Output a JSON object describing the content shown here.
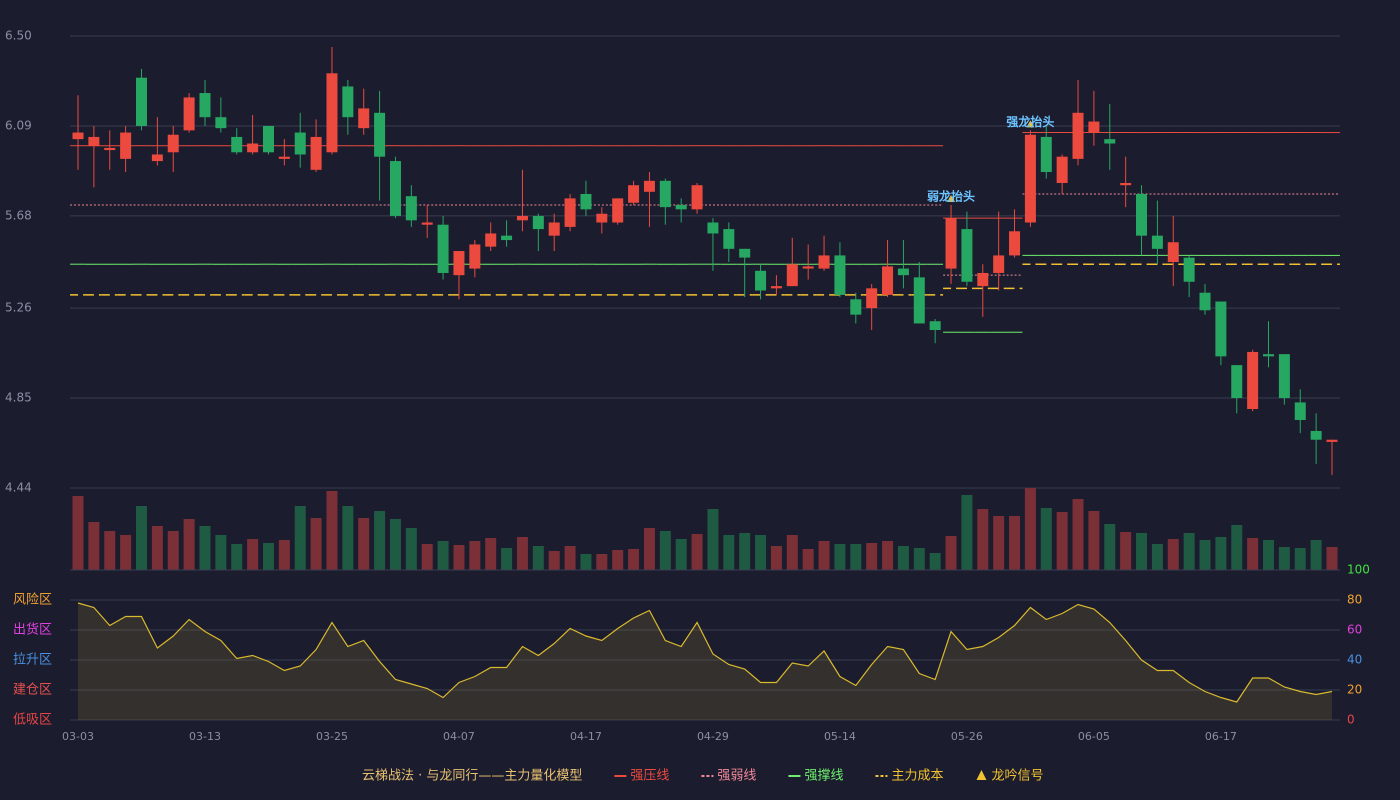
{
  "chart_data": {
    "type": "candlestick",
    "categories": [
      "03-03",
      null,
      null,
      null,
      null,
      null,
      null,
      null,
      "03-13",
      null,
      null,
      null,
      null,
      null,
      null,
      null,
      "03-25",
      null,
      null,
      null,
      null,
      null,
      null,
      null,
      "04-07",
      null,
      null,
      null,
      null,
      null,
      null,
      null,
      "04-17",
      null,
      null,
      null,
      null,
      null,
      null,
      null,
      "04-29",
      null,
      null,
      null,
      null,
      null,
      null,
      null,
      "05-14",
      null,
      null,
      null,
      null,
      null,
      null,
      null,
      "05-26",
      null,
      null,
      null,
      null,
      null,
      null,
      null,
      "06-05",
      null,
      null,
      null,
      null,
      null,
      null,
      null,
      "06-17",
      null,
      null,
      null,
      null,
      null,
      null,
      null
    ],
    "ohlc": [
      [
        6.03,
        6.23,
        5.89,
        6.06
      ],
      [
        6.0,
        6.09,
        5.81,
        6.04
      ],
      [
        5.98,
        6.07,
        5.89,
        5.99
      ],
      [
        5.94,
        6.09,
        5.88,
        6.06
      ],
      [
        6.31,
        6.35,
        6.07,
        6.09
      ],
      [
        5.93,
        6.13,
        5.91,
        5.96
      ],
      [
        5.97,
        6.09,
        5.88,
        6.05
      ],
      [
        6.07,
        6.24,
        6.06,
        6.22
      ],
      [
        6.24,
        6.3,
        6.09,
        6.13
      ],
      [
        6.13,
        6.22,
        6.06,
        6.08
      ],
      [
        6.04,
        6.08,
        5.96,
        5.97
      ],
      [
        5.97,
        6.14,
        5.96,
        6.01
      ],
      [
        6.09,
        6.09,
        5.96,
        5.97
      ],
      [
        5.94,
        6.03,
        5.91,
        5.95
      ],
      [
        6.06,
        6.15,
        5.9,
        5.96
      ],
      [
        5.89,
        6.12,
        5.88,
        6.04
      ],
      [
        5.97,
        6.45,
        5.96,
        6.33
      ],
      [
        6.27,
        6.3,
        6.05,
        6.13
      ],
      [
        6.08,
        6.26,
        6.05,
        6.17
      ],
      [
        6.15,
        6.25,
        5.75,
        5.95
      ],
      [
        5.93,
        5.95,
        5.67,
        5.68
      ],
      [
        5.77,
        5.82,
        5.63,
        5.66
      ],
      [
        5.64,
        5.73,
        5.58,
        5.65
      ],
      [
        5.64,
        5.68,
        5.39,
        5.42
      ],
      [
        5.41,
        5.52,
        5.3,
        5.52
      ],
      [
        5.44,
        5.57,
        5.4,
        5.55
      ],
      [
        5.54,
        5.65,
        5.52,
        5.6
      ],
      [
        5.59,
        5.66,
        5.54,
        5.57
      ],
      [
        5.66,
        5.89,
        5.61,
        5.68
      ],
      [
        5.68,
        5.69,
        5.52,
        5.62
      ],
      [
        5.59,
        5.69,
        5.52,
        5.65
      ],
      [
        5.63,
        5.78,
        5.61,
        5.76
      ],
      [
        5.78,
        5.84,
        5.68,
        5.71
      ],
      [
        5.65,
        5.72,
        5.6,
        5.69
      ],
      [
        5.65,
        5.76,
        5.64,
        5.76
      ],
      [
        5.74,
        5.84,
        5.73,
        5.82
      ],
      [
        5.79,
        5.88,
        5.63,
        5.84
      ],
      [
        5.84,
        5.85,
        5.64,
        5.72
      ],
      [
        5.73,
        5.76,
        5.65,
        5.71
      ],
      [
        5.71,
        5.83,
        5.69,
        5.82
      ],
      [
        5.65,
        5.67,
        5.43,
        5.6
      ],
      [
        5.62,
        5.65,
        5.47,
        5.53
      ],
      [
        5.53,
        5.53,
        5.31,
        5.49
      ],
      [
        5.43,
        5.46,
        5.3,
        5.34
      ],
      [
        5.35,
        5.41,
        5.32,
        5.36
      ],
      [
        5.36,
        5.58,
        5.36,
        5.46
      ],
      [
        5.44,
        5.55,
        5.39,
        5.45
      ],
      [
        5.44,
        5.59,
        5.43,
        5.5
      ],
      [
        5.5,
        5.56,
        5.31,
        5.32
      ],
      [
        5.3,
        5.33,
        5.19,
        5.23
      ],
      [
        5.26,
        5.37,
        5.16,
        5.35
      ],
      [
        5.32,
        5.57,
        5.31,
        5.45
      ],
      [
        5.44,
        5.57,
        5.35,
        5.41
      ],
      [
        5.4,
        5.47,
        5.19,
        5.19
      ],
      [
        5.2,
        5.21,
        5.1,
        5.16
      ],
      [
        5.44,
        5.73,
        5.37,
        5.67
      ],
      [
        5.62,
        5.7,
        5.36,
        5.38
      ],
      [
        5.36,
        5.46,
        5.22,
        5.42
      ],
      [
        5.42,
        5.7,
        5.34,
        5.5
      ],
      [
        5.5,
        5.71,
        5.49,
        5.61
      ],
      [
        5.65,
        6.07,
        5.63,
        6.05
      ],
      [
        6.04,
        6.09,
        5.85,
        5.88
      ],
      [
        5.83,
        5.96,
        5.78,
        5.95
      ],
      [
        5.94,
        6.3,
        5.91,
        6.15
      ],
      [
        6.06,
        6.25,
        6.0,
        6.11
      ],
      [
        6.03,
        6.19,
        5.89,
        6.01
      ],
      [
        5.82,
        5.95,
        5.72,
        5.83
      ],
      [
        5.78,
        5.82,
        5.5,
        5.59
      ],
      [
        5.59,
        5.75,
        5.46,
        5.53
      ],
      [
        5.47,
        5.68,
        5.36,
        5.56
      ],
      [
        5.49,
        5.5,
        5.31,
        5.38
      ],
      [
        5.33,
        5.37,
        5.23,
        5.25
      ],
      [
        5.29,
        5.29,
        5.0,
        5.04
      ],
      [
        5.0,
        5.0,
        4.78,
        4.85
      ],
      [
        4.8,
        5.07,
        4.79,
        5.06
      ],
      [
        5.05,
        5.2,
        4.99,
        5.04
      ],
      [
        5.05,
        5.05,
        4.82,
        4.85
      ],
      [
        4.83,
        4.89,
        4.69,
        4.75
      ],
      [
        4.7,
        4.78,
        4.55,
        4.66
      ],
      [
        4.65,
        4.66,
        4.5,
        4.66
      ]
    ],
    "up_color": "#ec4a3f",
    "down_color": "#27a862",
    "ylim": [
      4.44,
      6.5
    ],
    "yticks": [
      4.44,
      4.85,
      5.26,
      5.68,
      6.09,
      {
        "value": 6.5,
        "label": "6.50"
      }
    ],
    "grid": true,
    "levels": [
      {
        "name": "强压线",
        "color": "#ec4a3f",
        "style": "solid",
        "values": [
          6.0,
          6.0,
          6.0,
          6.0,
          6.0,
          6.0,
          6.0,
          6.0,
          6.0,
          6.0,
          6.0,
          6.0,
          6.0,
          6.0,
          6.0,
          6.0,
          6.0,
          6.0,
          6.0,
          6.0,
          6.0,
          6.0,
          6.0,
          6.0,
          6.0,
          6.0,
          6.0,
          6.0,
          6.0,
          6.0,
          6.0,
          6.0,
          6.0,
          6.0,
          6.0,
          6.0,
          6.0,
          6.0,
          6.0,
          6.0,
          6.0,
          6.0,
          6.0,
          6.0,
          6.0,
          6.0,
          6.0,
          6.0,
          6.0,
          6.0,
          6.0,
          6.0,
          6.0,
          6.0,
          6.0,
          5.67,
          5.67,
          5.67,
          5.67,
          5.67,
          6.06,
          6.06,
          6.06,
          6.06,
          6.06,
          6.06,
          6.06,
          6.06,
          6.06,
          6.06,
          6.06,
          6.06,
          6.06,
          6.06,
          6.06,
          6.06,
          6.06,
          6.06,
          6.06,
          6.06
        ]
      },
      {
        "name": "强弱线",
        "color": "#f08a9a",
        "style": "dotted",
        "values": [
          5.73,
          5.73,
          5.73,
          5.73,
          5.73,
          5.73,
          5.73,
          5.73,
          5.73,
          5.73,
          5.73,
          5.73,
          5.73,
          5.73,
          5.73,
          5.73,
          5.73,
          5.73,
          5.73,
          5.73,
          5.73,
          5.73,
          5.73,
          5.73,
          5.73,
          5.73,
          5.73,
          5.73,
          5.73,
          5.73,
          5.73,
          5.73,
          5.73,
          5.73,
          5.73,
          5.73,
          5.73,
          5.73,
          5.73,
          5.73,
          5.73,
          5.73,
          5.73,
          5.73,
          5.73,
          5.73,
          5.73,
          5.73,
          5.73,
          5.73,
          5.73,
          5.73,
          5.73,
          5.73,
          5.73,
          5.41,
          5.41,
          5.41,
          5.41,
          5.41,
          5.78,
          5.78,
          5.78,
          5.78,
          5.78,
          5.78,
          5.78,
          5.78,
          5.78,
          5.78,
          5.78,
          5.78,
          5.78,
          5.78,
          5.78,
          5.78,
          5.78,
          5.78,
          5.78,
          5.78
        ]
      },
      {
        "name": "强撑线",
        "color": "#6ef06e",
        "style": "solid",
        "values": [
          5.46,
          5.46,
          5.46,
          5.46,
          5.46,
          5.46,
          5.46,
          5.46,
          5.46,
          5.46,
          5.46,
          5.46,
          5.46,
          5.46,
          5.46,
          5.46,
          5.46,
          5.46,
          5.46,
          5.46,
          5.46,
          5.46,
          5.46,
          5.46,
          5.46,
          5.46,
          5.46,
          5.46,
          5.46,
          5.46,
          5.46,
          5.46,
          5.46,
          5.46,
          5.46,
          5.46,
          5.46,
          5.46,
          5.46,
          5.46,
          5.46,
          5.46,
          5.46,
          5.46,
          5.46,
          5.46,
          5.46,
          5.46,
          5.46,
          5.46,
          5.46,
          5.46,
          5.46,
          5.46,
          5.46,
          5.15,
          5.15,
          5.15,
          5.15,
          5.15,
          5.5,
          5.5,
          5.5,
          5.5,
          5.5,
          5.5,
          5.5,
          5.5,
          5.5,
          5.5,
          5.5,
          5.5,
          5.5,
          5.5,
          5.5,
          5.5,
          5.5,
          5.5,
          5.5,
          5.5
        ]
      },
      {
        "name": "主力成本",
        "color": "#f2c230",
        "style": "dashed",
        "values": [
          5.32,
          5.32,
          5.32,
          5.32,
          5.32,
          5.32,
          5.32,
          5.32,
          5.32,
          5.32,
          5.32,
          5.32,
          5.32,
          5.32,
          5.32,
          5.32,
          5.32,
          5.32,
          5.32,
          5.32,
          5.32,
          5.32,
          5.32,
          5.32,
          5.32,
          5.32,
          5.32,
          5.32,
          5.32,
          5.32,
          5.32,
          5.32,
          5.32,
          5.32,
          5.32,
          5.32,
          5.32,
          5.32,
          5.32,
          5.32,
          5.32,
          5.32,
          5.32,
          5.32,
          5.32,
          5.32,
          5.32,
          5.32,
          5.32,
          5.32,
          5.32,
          5.32,
          5.32,
          5.32,
          5.32,
          5.35,
          5.35,
          5.35,
          5.35,
          5.35,
          5.46,
          5.46,
          5.46,
          5.46,
          5.46,
          5.46,
          5.46,
          5.46,
          5.46,
          5.46,
          5.46,
          5.46,
          5.46,
          5.46,
          5.46,
          5.46,
          5.46,
          5.46,
          5.46,
          5.46
        ]
      }
    ],
    "signals": {
      "name": "龙吟信号",
      "color": "#f2c230",
      "text_color": "#6cc3ff",
      "points": [
        {
          "index": 55,
          "label": "弱龙抬头"
        },
        {
          "index": 60,
          "label": "强龙抬头"
        }
      ]
    },
    "legend_title": "云梯战法 · 与龙同行——主力量化模型",
    "volume": {
      "up_color": "#7a3036",
      "down_color": "#1f5a42",
      "ylim": [
        0,
        82
      ],
      "values": [
        74,
        48,
        39,
        35,
        64,
        44,
        39,
        51,
        44,
        35,
        26,
        31,
        27,
        30,
        64,
        52,
        79,
        64,
        52,
        59,
        51,
        42,
        26,
        29,
        25,
        29,
        32,
        22,
        33,
        24,
        19,
        24,
        16,
        16,
        20,
        21,
        42,
        39,
        31,
        36,
        61,
        35,
        37,
        35,
        24,
        35,
        21,
        29,
        26,
        26,
        27,
        29,
        24,
        22,
        17,
        34,
        75,
        61,
        54,
        54,
        82,
        62,
        58,
        71,
        59,
        46,
        38,
        37,
        26,
        31,
        37,
        30,
        33,
        45,
        32,
        30,
        23,
        22,
        30,
        23
      ]
    },
    "indicator": {
      "type": "area",
      "color": "#d9b92e",
      "fill": "rgba(120,100,50,0.28)",
      "ylim": [
        0,
        100
      ],
      "yticks": [
        0,
        20,
        40,
        60,
        80,
        100
      ],
      "ytick_colors": [
        "#e84545",
        "#f0a030",
        "#4a90e0",
        "#e040e0",
        "#f0a030",
        "#40e040"
      ],
      "zones": [
        {
          "label": "低吸区",
          "value": 0,
          "color": "#e84545"
        },
        {
          "label": "建仓区",
          "value": 20,
          "color": "#e85050"
        },
        {
          "label": "拉升区",
          "value": 40,
          "color": "#4a90e0"
        },
        {
          "label": "出货区",
          "value": 60,
          "color": "#e040e0"
        },
        {
          "label": "风险区",
          "value": 80,
          "color": "#f0a030"
        }
      ],
      "values": [
        78,
        75,
        63,
        69,
        69,
        48,
        56,
        67,
        59,
        53,
        41,
        43,
        39,
        33,
        36,
        47,
        65,
        49,
        53,
        39,
        27,
        24,
        21,
        15,
        25,
        29,
        35,
        35,
        49,
        43,
        51,
        61,
        56,
        53,
        61,
        68,
        73,
        53,
        49,
        65,
        44,
        37,
        34,
        25,
        25,
        38,
        36,
        46,
        29,
        23,
        37,
        49,
        47,
        31,
        27,
        59,
        47,
        49,
        55,
        63,
        75,
        67,
        71,
        77,
        74,
        65,
        53,
        40,
        33,
        33,
        25,
        19,
        15,
        12,
        28,
        28,
        22,
        19,
        17,
        19
      ]
    }
  }
}
